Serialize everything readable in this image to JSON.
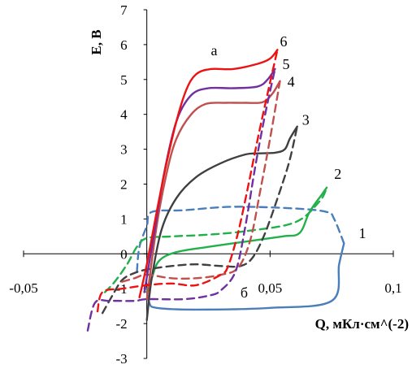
{
  "chart_data": {
    "type": "line",
    "title": "",
    "xlabel": "Q, мКл·см^(-2)",
    "ylabel": "E, B",
    "xlim": [
      -0.05,
      0.1
    ],
    "ylim": [
      -3,
      7
    ],
    "x_ticks": [
      "-0,05",
      "0",
      "0,05",
      "0,1"
    ],
    "y_ticks": [
      "-3",
      "-2",
      "-1",
      "0",
      "1",
      "2",
      "3",
      "4",
      "5",
      "6",
      "7"
    ],
    "grid": false,
    "legend": "none",
    "annotations": [
      {
        "text": "а",
        "x": 0.026,
        "y": 5.7
      },
      {
        "text": "б",
        "x": 0.038,
        "y": -1.25
      }
    ],
    "series": [
      {
        "name": "1",
        "color": "#4a7ebb",
        "style": "solid",
        "label_x": 0.086,
        "label_y": 0.45,
        "x": [
          0.0,
          0.001,
          0.004,
          0.02,
          0.05,
          0.075,
          0.078,
          0.08
        ],
        "y": [
          -1.0,
          -1.4,
          -1.55,
          -1.6,
          -1.55,
          -1.35,
          -0.3,
          0.3
        ]
      },
      {
        "name": "1",
        "color": "#4a7ebb",
        "style": "dashed",
        "x": [
          -0.004,
          -0.003,
          0.0,
          0.002,
          0.015,
          0.035,
          0.06,
          0.073,
          0.076,
          0.08
        ],
        "y": [
          -0.5,
          0.2,
          0.8,
          1.2,
          1.25,
          1.35,
          1.3,
          1.2,
          1.0,
          0.3
        ]
      },
      {
        "name": "2",
        "color": "#22b04a",
        "style": "solid",
        "label_x": 0.076,
        "label_y": 2.15,
        "x": [
          0.0,
          0.002,
          0.005,
          0.012,
          0.025,
          0.04,
          0.055,
          0.062,
          0.066,
          0.071,
          0.073
        ],
        "y": [
          -1.1,
          -0.7,
          -0.2,
          0.05,
          0.2,
          0.35,
          0.5,
          0.6,
          1.2,
          1.7,
          1.9
        ]
      },
      {
        "name": "2",
        "color": "#22b04a",
        "style": "dashed",
        "x": [
          -0.017,
          -0.013,
          -0.008,
          -0.004,
          0.0,
          0.01,
          0.025,
          0.04,
          0.06,
          0.07,
          0.073
        ],
        "y": [
          -1.1,
          -0.8,
          -0.3,
          0.2,
          0.45,
          0.5,
          0.55,
          0.65,
          0.9,
          1.5,
          1.9
        ]
      },
      {
        "name": "3",
        "color": "#404040",
        "style": "solid",
        "label_x": 0.063,
        "label_y": 3.7,
        "x": [
          0.0,
          0.002,
          0.006,
          0.012,
          0.02,
          0.03,
          0.04,
          0.045,
          0.052,
          0.056,
          0.058,
          0.061
        ],
        "y": [
          -1.9,
          -0.7,
          0.7,
          1.6,
          2.2,
          2.6,
          2.85,
          2.88,
          2.9,
          3.0,
          3.3,
          3.65
        ]
      },
      {
        "name": "3",
        "color": "#404040",
        "style": "dashed",
        "x": [
          -0.018,
          -0.014,
          -0.01,
          -0.005,
          0.0,
          0.01,
          0.02,
          0.03,
          0.038,
          0.043,
          0.048,
          0.054,
          0.058,
          0.061
        ],
        "y": [
          -1.7,
          -1.2,
          -0.75,
          -0.55,
          -0.45,
          -0.35,
          -0.3,
          -0.35,
          -0.35,
          -0.1,
          0.6,
          1.8,
          2.7,
          3.65
        ]
      },
      {
        "name": "4",
        "color": "#c0504d",
        "style": "solid",
        "label_x": 0.057,
        "label_y": 4.8,
        "x": [
          0.0,
          0.004,
          0.008,
          0.012,
          0.018,
          0.024,
          0.032,
          0.04,
          0.047,
          0.051,
          0.054
        ],
        "y": [
          -1.3,
          0.8,
          2.3,
          3.3,
          4.0,
          4.3,
          4.33,
          4.33,
          4.35,
          4.6,
          4.95
        ]
      },
      {
        "name": "4",
        "color": "#c0504d",
        "style": "dashed",
        "x": [
          -0.01,
          -0.005,
          0.0,
          0.01,
          0.02,
          0.03,
          0.037,
          0.042,
          0.046,
          0.05,
          0.054
        ],
        "y": [
          -0.8,
          -0.7,
          -0.6,
          -0.7,
          -0.7,
          -0.6,
          -0.4,
          0.4,
          1.8,
          3.3,
          4.95
        ]
      },
      {
        "name": "5",
        "color": "#7030a0",
        "style": "solid",
        "label_x": 0.055,
        "label_y": 5.3,
        "x": [
          -0.001,
          0.003,
          0.007,
          0.012,
          0.018,
          0.025,
          0.035,
          0.045,
          0.049,
          0.052
        ],
        "y": [
          -1.1,
          0.6,
          2.3,
          3.8,
          4.55,
          4.75,
          4.75,
          4.8,
          5.0,
          5.3
        ]
      },
      {
        "name": "5",
        "color": "#7030a0",
        "style": "dashed",
        "x": [
          -0.024,
          -0.021,
          -0.015,
          -0.005,
          0.0,
          0.015,
          0.025,
          0.03,
          0.036,
          0.04,
          0.044,
          0.048,
          0.052
        ],
        "y": [
          -2.2,
          -1.4,
          -1.35,
          -1.35,
          -1.3,
          -1.3,
          -1.2,
          -1.05,
          -0.5,
          0.8,
          2.5,
          4.0,
          5.3
        ]
      },
      {
        "name": "6",
        "color": "#ee1111",
        "style": "solid",
        "label_x": 0.054,
        "label_y": 5.95,
        "x": [
          -0.003,
          0.0,
          0.004,
          0.008,
          0.012,
          0.016,
          0.02,
          0.026,
          0.035,
          0.045,
          0.05,
          0.053
        ],
        "y": [
          -1.25,
          -0.3,
          1.2,
          2.6,
          3.8,
          4.7,
          5.15,
          5.3,
          5.3,
          5.45,
          5.6,
          5.85
        ]
      },
      {
        "name": "6",
        "color": "#ee1111",
        "style": "dashed",
        "x": [
          -0.02,
          -0.018,
          -0.01,
          0.0,
          0.01,
          0.02,
          0.03,
          0.033,
          0.037,
          0.041,
          0.045,
          0.049,
          0.053
        ],
        "y": [
          -1.65,
          -1.1,
          -1.0,
          -0.9,
          -0.85,
          -0.9,
          -0.6,
          -0.35,
          0.6,
          1.9,
          3.3,
          4.6,
          5.85
        ]
      }
    ]
  }
}
